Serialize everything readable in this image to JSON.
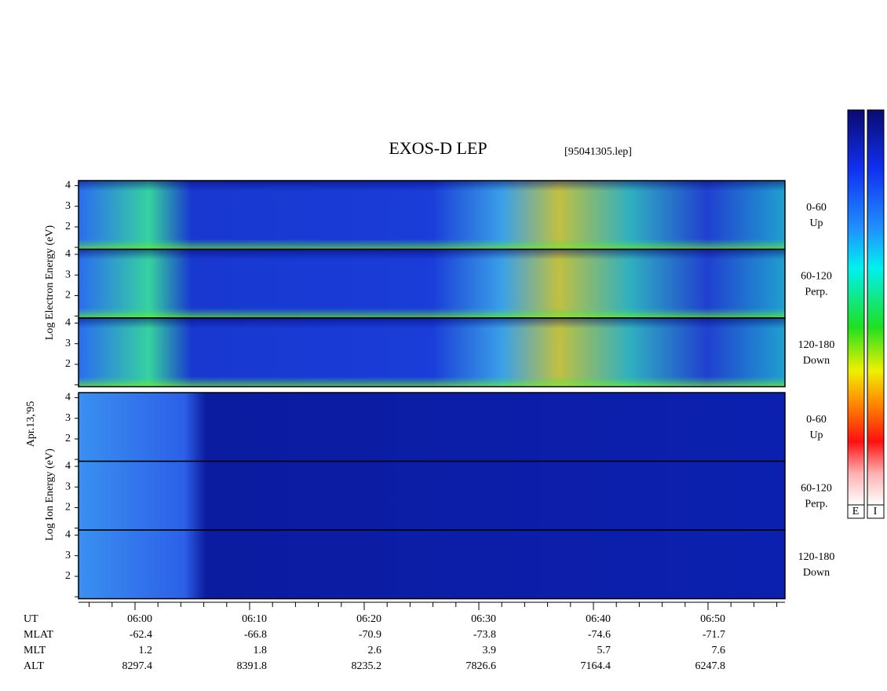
{
  "title": "EXOS-D LEP",
  "file": "[95041305.lep]",
  "date": "Apr.13,'95",
  "electron_axis_label": "Log Electron Energy (eV)",
  "ion_axis_label": "Log Ion Energy (eV)",
  "yticks": [
    "2",
    "3",
    "4"
  ],
  "electron_panels": [
    {
      "angle": "0-60",
      "dir": "Up"
    },
    {
      "angle": "60-120",
      "dir": "Perp."
    },
    {
      "angle": "120-180",
      "dir": "Down"
    }
  ],
  "ion_panels": [
    {
      "angle": "0-60",
      "dir": "Up"
    },
    {
      "angle": "60-120",
      "dir": "Perp."
    },
    {
      "angle": "120-180",
      "dir": "Down"
    }
  ],
  "rows": [
    {
      "label": "UT",
      "values": [
        "06:00",
        "06:10",
        "06:20",
        "06:30",
        "06:40",
        "06:50"
      ]
    },
    {
      "label": "MLAT",
      "values": [
        "-62.4",
        "-66.8",
        "-70.9",
        "-73.8",
        "-74.6",
        "-71.7"
      ]
    },
    {
      "label": "MLT",
      "values": [
        "1.2",
        "1.8",
        "2.6",
        "3.9",
        "5.7",
        "7.6"
      ]
    },
    {
      "label": "ALT",
      "values": [
        "8297.4",
        "8391.8",
        "8235.2",
        "7826.6",
        "7164.4",
        "6247.8"
      ]
    }
  ],
  "colorbars": [
    "E",
    "I"
  ]
}
